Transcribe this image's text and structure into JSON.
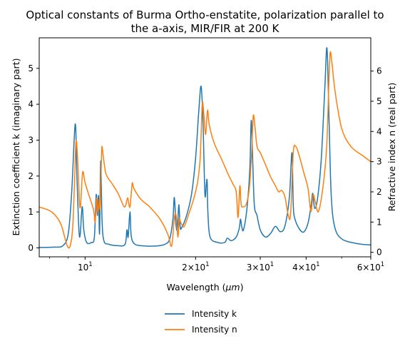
{
  "chart_data": {
    "type": "line",
    "title_line1": "Optical constants of Burma Ortho-enstatite, polarization parallel to",
    "title_line2": "the a-axis, MIR/FIR at 200 K",
    "xlabel": "Wavelength ($\\mu m$)",
    "ylabel_left": "Extinction coefficient k (imaginary part)",
    "ylabel_right": "Refractive index n (real part)",
    "x_scale": "log",
    "xlim": [
      7.5,
      60
    ],
    "ylim_left": [
      -0.25,
      5.85
    ],
    "ylim_right": [
      -0.15,
      7.1
    ],
    "x_major_ticks": [
      {
        "value": 10,
        "base": "10",
        "exp": "1"
      },
      {
        "value": 20,
        "base": "2×10",
        "exp": "1"
      },
      {
        "value": 30,
        "base": "3×10",
        "exp": "1"
      },
      {
        "value": 40,
        "base": "4×10",
        "exp": "1"
      },
      {
        "value": 60,
        "base": "6×10",
        "exp": "1"
      }
    ],
    "x_minor_ticks": [
      8,
      9,
      50
    ],
    "y_left_ticks": [
      "0",
      "1",
      "2",
      "3",
      "4",
      "5"
    ],
    "y_right_ticks": [
      "0",
      "1",
      "2",
      "3",
      "4",
      "5",
      "6"
    ],
    "legend_position": "below plot, centered",
    "series": [
      {
        "name": "Intensity k",
        "axis": "left",
        "color": "#1f77b4",
        "points": [
          [
            7.5,
            0.01
          ],
          [
            8.2,
            0.02
          ],
          [
            8.7,
            0.06
          ],
          [
            9.0,
            0.4
          ],
          [
            9.2,
            1.6
          ],
          [
            9.4,
            3.45
          ],
          [
            9.5,
            2.0
          ],
          [
            9.62,
            0.5
          ],
          [
            9.7,
            0.38
          ],
          [
            9.82,
            1.15
          ],
          [
            9.92,
            0.5
          ],
          [
            10.1,
            0.15
          ],
          [
            10.4,
            0.15
          ],
          [
            10.6,
            0.3
          ],
          [
            10.72,
            1.48
          ],
          [
            10.8,
            0.9
          ],
          [
            10.88,
            1.45
          ],
          [
            10.95,
            0.4
          ],
          [
            11.03,
            2.42
          ],
          [
            11.12,
            0.8
          ],
          [
            11.25,
            0.2
          ],
          [
            11.6,
            0.1
          ],
          [
            12.3,
            0.06
          ],
          [
            12.85,
            0.1
          ],
          [
            13.0,
            0.5
          ],
          [
            13.1,
            0.3
          ],
          [
            13.25,
            1.0
          ],
          [
            13.35,
            0.35
          ],
          [
            13.6,
            0.12
          ],
          [
            14.2,
            0.06
          ],
          [
            15.5,
            0.05
          ],
          [
            16.5,
            0.1
          ],
          [
            17.0,
            0.25
          ],
          [
            17.35,
            0.8
          ],
          [
            17.5,
            1.4
          ],
          [
            17.7,
            0.6
          ],
          [
            17.85,
            0.55
          ],
          [
            18.0,
            1.2
          ],
          [
            18.15,
            0.6
          ],
          [
            18.3,
            0.55
          ],
          [
            18.9,
            0.9
          ],
          [
            19.5,
            1.5
          ],
          [
            20.0,
            2.5
          ],
          [
            20.4,
            3.8
          ],
          [
            20.7,
            4.5
          ],
          [
            20.95,
            3.5
          ],
          [
            21.2,
            1.5
          ],
          [
            21.4,
            1.8
          ],
          [
            21.5,
            1.85
          ],
          [
            21.6,
            1.0
          ],
          [
            21.9,
            0.3
          ],
          [
            23.0,
            0.15
          ],
          [
            24.0,
            0.15
          ],
          [
            24.4,
            0.27
          ],
          [
            25.0,
            0.2
          ],
          [
            25.8,
            0.3
          ],
          [
            26.3,
            0.55
          ],
          [
            26.5,
            0.8
          ],
          [
            26.7,
            0.6
          ],
          [
            27.0,
            0.5
          ],
          [
            27.6,
            1.1
          ],
          [
            28.1,
            2.2
          ],
          [
            28.35,
            3.55
          ],
          [
            28.6,
            2.5
          ],
          [
            28.9,
            1.2
          ],
          [
            29.4,
            0.9
          ],
          [
            30.0,
            0.5
          ],
          [
            31.0,
            0.3
          ],
          [
            32.0,
            0.4
          ],
          [
            33.0,
            0.6
          ],
          [
            34.0,
            0.45
          ],
          [
            35.0,
            0.6
          ],
          [
            36.0,
            1.4
          ],
          [
            36.6,
            2.65
          ],
          [
            36.9,
            1.2
          ],
          [
            37.3,
            0.8
          ],
          [
            38.5,
            0.5
          ],
          [
            39.5,
            0.45
          ],
          [
            40.5,
            0.7
          ],
          [
            41.3,
            1.2
          ],
          [
            41.7,
            1.52
          ],
          [
            42.2,
            1.1
          ],
          [
            43.0,
            1.4
          ],
          [
            44.0,
            2.5
          ],
          [
            45.0,
            4.5
          ],
          [
            45.6,
            5.55
          ],
          [
            46.2,
            3.5
          ],
          [
            46.8,
            1.5
          ],
          [
            47.8,
            0.6
          ],
          [
            50,
            0.25
          ],
          [
            55,
            0.12
          ],
          [
            60,
            0.08
          ]
        ]
      },
      {
        "name": "Intensity n",
        "axis": "right",
        "color": "#ff7f0e",
        "points": [
          [
            7.5,
            1.5
          ],
          [
            8.0,
            1.38
          ],
          [
            8.3,
            1.22
          ],
          [
            8.6,
            0.92
          ],
          [
            8.8,
            0.5
          ],
          [
            8.95,
            0.2
          ],
          [
            9.1,
            0.2
          ],
          [
            9.25,
            0.8
          ],
          [
            9.37,
            2.5
          ],
          [
            9.45,
            3.7
          ],
          [
            9.55,
            3.0
          ],
          [
            9.65,
            1.7
          ],
          [
            9.72,
            1.55
          ],
          [
            9.85,
            2.65
          ],
          [
            10.0,
            2.3
          ],
          [
            10.3,
            1.8
          ],
          [
            10.55,
            1.4
          ],
          [
            10.65,
            1.0
          ],
          [
            10.75,
            1.8
          ],
          [
            10.84,
            1.3
          ],
          [
            10.93,
            1.75
          ],
          [
            11.0,
            1.5
          ],
          [
            11.1,
            3.4
          ],
          [
            11.2,
            3.2
          ],
          [
            11.4,
            2.6
          ],
          [
            11.8,
            2.3
          ],
          [
            12.3,
            1.95
          ],
          [
            12.8,
            1.5
          ],
          [
            13.05,
            1.8
          ],
          [
            13.15,
            1.6
          ],
          [
            13.25,
            1.5
          ],
          [
            13.35,
            1.9
          ],
          [
            13.45,
            2.3
          ],
          [
            13.6,
            2.1
          ],
          [
            14.2,
            1.75
          ],
          [
            15.0,
            1.5
          ],
          [
            16.0,
            1.1
          ],
          [
            16.8,
            0.6
          ],
          [
            17.2,
            0.2
          ],
          [
            17.45,
            0.95
          ],
          [
            17.6,
            1.3
          ],
          [
            17.75,
            1.1
          ],
          [
            17.9,
            0.5
          ],
          [
            18.05,
            1.1
          ],
          [
            18.2,
            1.0
          ],
          [
            18.6,
            0.85
          ],
          [
            19.2,
            1.3
          ],
          [
            19.8,
            1.8
          ],
          [
            20.3,
            2.4
          ],
          [
            20.6,
            3.2
          ],
          [
            20.85,
            4.9
          ],
          [
            21.05,
            4.6
          ],
          [
            21.3,
            3.9
          ],
          [
            21.55,
            4.7
          ],
          [
            21.8,
            4.2
          ],
          [
            22.5,
            3.6
          ],
          [
            23.5,
            3.1
          ],
          [
            24.5,
            2.6
          ],
          [
            25.3,
            2.25
          ],
          [
            25.8,
            2.0
          ],
          [
            26.1,
            1.15
          ],
          [
            26.4,
            2.2
          ],
          [
            26.6,
            1.6
          ],
          [
            26.9,
            1.5
          ],
          [
            27.5,
            1.6
          ],
          [
            28.0,
            2.1
          ],
          [
            28.4,
            3.2
          ],
          [
            28.7,
            4.5
          ],
          [
            29.0,
            4.2
          ],
          [
            29.4,
            3.5
          ],
          [
            30.0,
            3.3
          ],
          [
            31.0,
            2.9
          ],
          [
            32.0,
            2.5
          ],
          [
            33.0,
            2.2
          ],
          [
            33.7,
            2.0
          ],
          [
            34.3,
            2.05
          ],
          [
            35.0,
            1.85
          ],
          [
            35.8,
            1.2
          ],
          [
            36.3,
            1.3
          ],
          [
            36.9,
            3.3
          ],
          [
            37.5,
            3.5
          ],
          [
            38.3,
            3.2
          ],
          [
            39.5,
            2.6
          ],
          [
            40.5,
            2.1
          ],
          [
            41.2,
            1.35
          ],
          [
            41.8,
            1.9
          ],
          [
            42.3,
            1.7
          ],
          [
            43.2,
            1.35
          ],
          [
            44.5,
            2.2
          ],
          [
            45.5,
            3.5
          ],
          [
            46.1,
            5.5
          ],
          [
            46.5,
            6.6
          ],
          [
            47.0,
            6.3
          ],
          [
            48.0,
            5.3
          ],
          [
            50,
            4.1
          ],
          [
            53,
            3.5
          ],
          [
            57,
            3.2
          ],
          [
            60,
            3.0
          ]
        ]
      }
    ]
  }
}
